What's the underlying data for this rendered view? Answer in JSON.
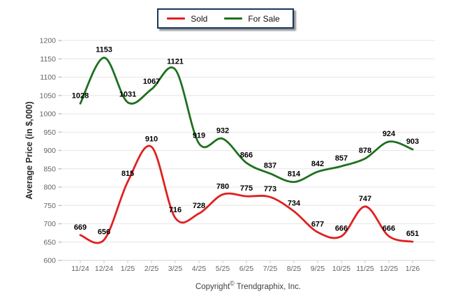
{
  "legend": {
    "items": [
      {
        "label": "Sold",
        "color": "#e02020"
      },
      {
        "label": "For Sale",
        "color": "#1e701e"
      }
    ]
  },
  "chart_data": {
    "type": "line",
    "title": "",
    "xlabel": "",
    "ylabel": "Average Price (in $,000)",
    "categories": [
      "11/24",
      "12/24",
      "1/25",
      "2/25",
      "3/25",
      "4/25",
      "5/25",
      "6/25",
      "7/25",
      "8/25",
      "9/25",
      "10/25",
      "11/25",
      "12/25",
      "1/26"
    ],
    "series": [
      {
        "name": "Sold",
        "color": "#e02020",
        "values": [
          669,
          656,
          815,
          910,
          716,
          728,
          780,
          775,
          773,
          734,
          677,
          666,
          747,
          666,
          651
        ]
      },
      {
        "name": "For Sale",
        "color": "#1e701e",
        "values": [
          1028,
          1153,
          1031,
          1067,
          1121,
          919,
          932,
          866,
          837,
          814,
          842,
          857,
          878,
          924,
          903
        ]
      }
    ],
    "ylim": [
      600,
      1200
    ],
    "ytick_step": 50,
    "grid": true,
    "smooth": true,
    "data_labels": true,
    "legend_position": "top-center"
  },
  "footer": {
    "copyright_prefix": "Copyright",
    "copyright_symbol": "©",
    "copyright_company": "Trendgraphix, Inc."
  },
  "colors": {
    "sold_line": "#e02020",
    "for_sale_line": "#1e701e",
    "legend_border": "#17365d",
    "gridline": "#e6e6e6",
    "axis_line": "#d2d2d2",
    "y_tick_mark": "#b3c6d9",
    "x_tick_mark": "#c9c9c9",
    "tick_label": "#636363",
    "data_label": "#000000",
    "axis_title": "#2b2b2b",
    "background": "#ffffff"
  }
}
